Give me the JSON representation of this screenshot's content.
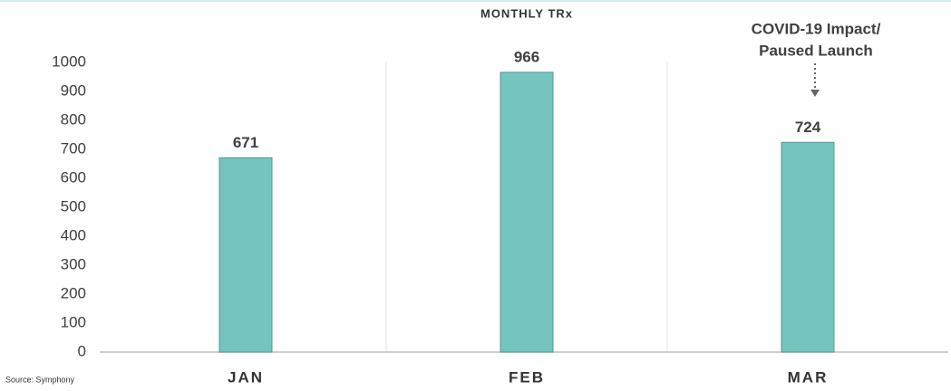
{
  "chart_data": {
    "type": "bar",
    "title": "MONTHLY TRx",
    "categories": [
      "JAN",
      "FEB",
      "MAR"
    ],
    "values": [
      671,
      966,
      724
    ],
    "color": "#76c4be",
    "ylim": [
      0,
      1000
    ],
    "yticks": [
      0,
      100,
      200,
      300,
      400,
      500,
      600,
      700,
      800,
      900,
      1000
    ],
    "annotation": [
      "COVID-19 Impact/",
      "Paused Launch"
    ],
    "source": "Source: Symphony"
  }
}
